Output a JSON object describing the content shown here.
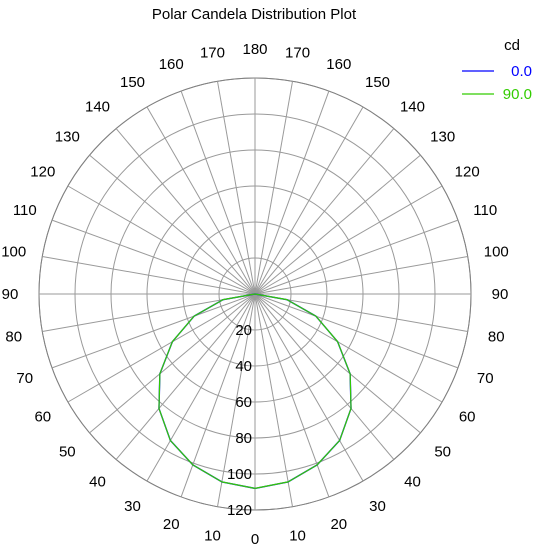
{
  "chart_data": {
    "type": "polar-line",
    "title": "Polar Candela Distribution Plot",
    "unit": "cd",
    "angle_labels": [
      "0",
      "10",
      "20",
      "30",
      "40",
      "50",
      "60",
      "70",
      "80",
      "90",
      "100",
      "110",
      "120",
      "130",
      "140",
      "150",
      "160",
      "170",
      "180"
    ],
    "angle_ticks_deg": [
      0,
      10,
      20,
      30,
      40,
      50,
      60,
      70,
      80,
      90,
      100,
      110,
      120,
      130,
      140,
      150,
      160,
      170,
      180
    ],
    "radial_labels": [
      "20",
      "40",
      "60",
      "80",
      "100",
      "120"
    ],
    "radial_ticks": [
      20,
      40,
      60,
      80,
      100,
      120
    ],
    "rmax": 120,
    "series": [
      {
        "name": "0.0",
        "color": "#0000ff",
        "angles": [
          0,
          10,
          20,
          30,
          40,
          50,
          60,
          70,
          80,
          90
        ],
        "values": [
          108,
          106,
          101,
          94,
          83,
          69,
          53,
          36,
          18,
          0
        ]
      },
      {
        "name": "90.0",
        "color": "#33cc00",
        "angles": [
          0,
          10,
          20,
          30,
          40,
          50,
          60,
          70,
          80,
          90
        ],
        "values": [
          108,
          106,
          101,
          94,
          83,
          69,
          53,
          36,
          18,
          0
        ]
      }
    ]
  }
}
